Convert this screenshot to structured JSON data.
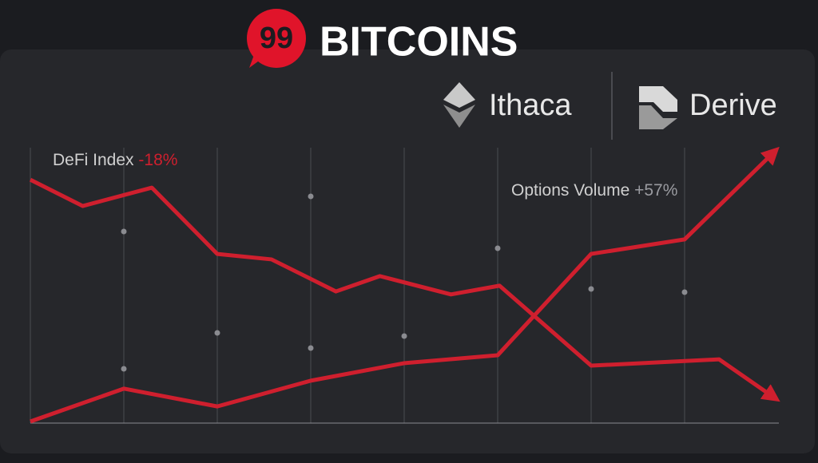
{
  "brand": {
    "badge": "99",
    "name": "BITCOINS"
  },
  "partners": [
    "Ithaca",
    "Derive"
  ],
  "chart_data": {
    "type": "line",
    "xlim": [
      0,
      8
    ],
    "ylim": [
      0,
      100
    ],
    "series": [
      {
        "name": "DeFi Index",
        "change": "-18%",
        "color": "#cf1f2e",
        "x": [
          0,
          0.56,
          1.3,
          2,
          2.58,
          3.27,
          3.74,
          4.5,
          5.02,
          6,
          7.37,
          7.96
        ],
        "values": [
          88.3,
          78.7,
          85.4,
          61.2,
          59.2,
          47.5,
          53.1,
          46.4,
          49.6,
          20.4,
          22.7,
          8.7
        ]
      },
      {
        "name": "Options Volume",
        "change": "+57%",
        "color": "#cf1f2e",
        "x": [
          0,
          1,
          2,
          3,
          4,
          5,
          6,
          7,
          7.96
        ],
        "values": [
          0,
          12,
          5.5,
          14.9,
          21.3,
          24.2,
          61.2,
          66.5,
          98.5
        ]
      }
    ]
  }
}
